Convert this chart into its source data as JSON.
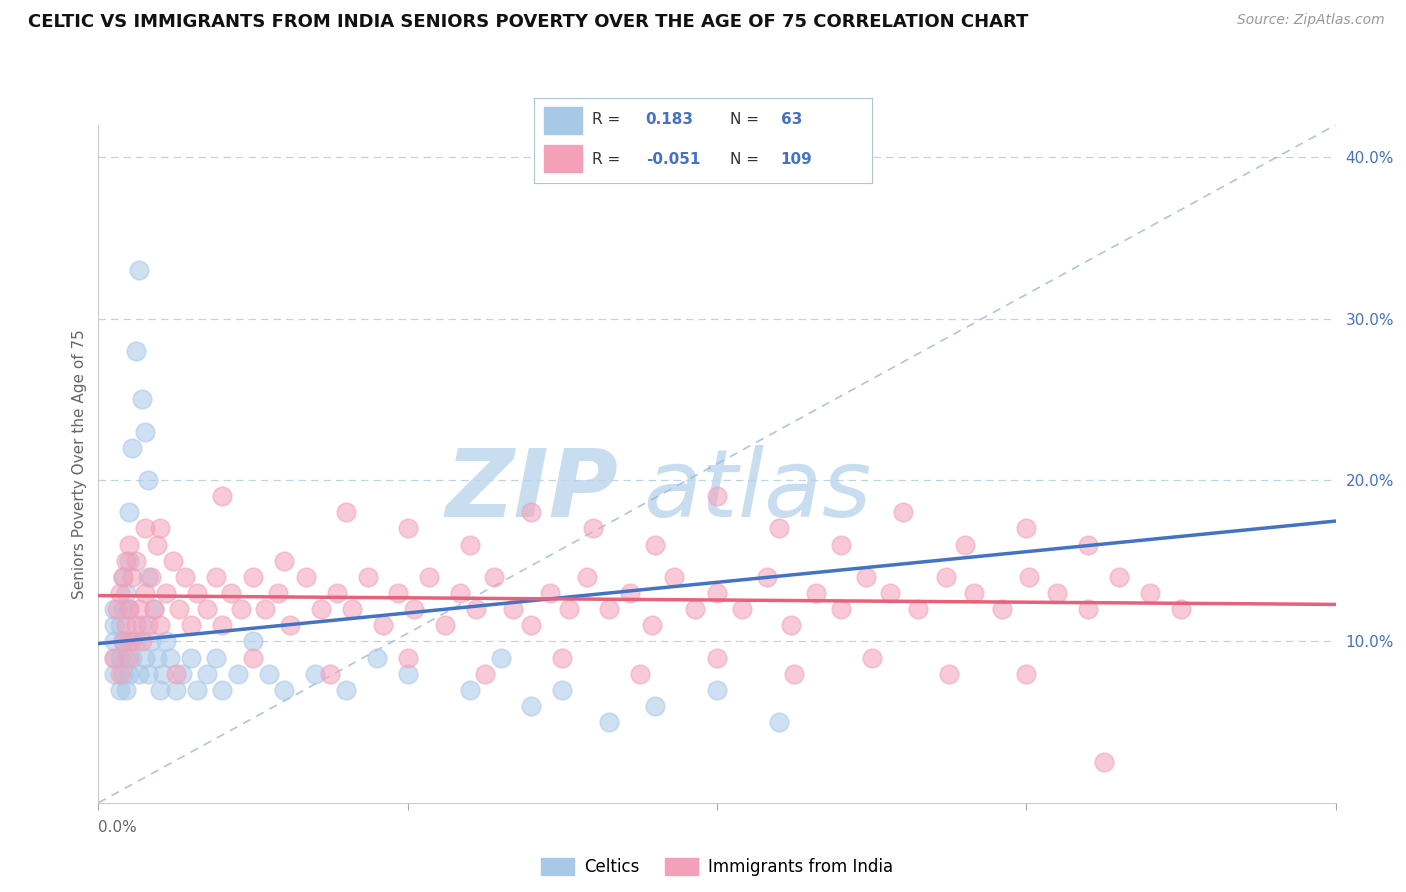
{
  "title": "CELTIC VS IMMIGRANTS FROM INDIA SENIORS POVERTY OVER THE AGE OF 75 CORRELATION CHART",
  "source": "Source: ZipAtlas.com",
  "ylabel": "Seniors Poverty Over the Age of 75",
  "legend_label1": "Celtics",
  "legend_label2": "Immigrants from India",
  "R1": 0.183,
  "N1": 63,
  "R2": -0.051,
  "N2": 109,
  "xmin": 0.0,
  "xmax": 0.4,
  "ymin": 0.0,
  "ymax": 0.42,
  "yticks": [
    0.1,
    0.2,
    0.3,
    0.4
  ],
  "ytick_labels": [
    "10.0%",
    "20.0%",
    "30.0%",
    "40.0%"
  ],
  "color_blue": "#a8c8e8",
  "color_pink": "#f4a0b8",
  "color_blue_line": "#4472c4",
  "color_pink_line": "#e8607a",
  "color_blue_text": "#4472c4",
  "color_gray_text": "#666666",
  "background": "#ffffff",
  "legend_box_color": "#e8f0f8",
  "celtics_x": [
    0.005,
    0.005,
    0.005,
    0.005,
    0.005,
    0.007,
    0.007,
    0.007,
    0.008,
    0.008,
    0.008,
    0.008,
    0.009,
    0.009,
    0.009,
    0.01,
    0.01,
    0.01,
    0.01,
    0.01,
    0.011,
    0.011,
    0.012,
    0.012,
    0.013,
    0.013,
    0.014,
    0.014,
    0.015,
    0.015,
    0.016,
    0.016,
    0.016,
    0.017,
    0.018,
    0.019,
    0.02,
    0.021,
    0.022,
    0.023,
    0.025,
    0.027,
    0.03,
    0.032,
    0.035,
    0.038,
    0.04,
    0.045,
    0.05,
    0.055,
    0.06,
    0.07,
    0.08,
    0.09,
    0.1,
    0.12,
    0.13,
    0.14,
    0.15,
    0.165,
    0.18,
    0.2,
    0.22
  ],
  "celtics_y": [
    0.08,
    0.09,
    0.1,
    0.11,
    0.12,
    0.07,
    0.09,
    0.11,
    0.08,
    0.1,
    0.12,
    0.14,
    0.07,
    0.09,
    0.13,
    0.08,
    0.1,
    0.12,
    0.15,
    0.18,
    0.09,
    0.22,
    0.1,
    0.28,
    0.08,
    0.33,
    0.11,
    0.25,
    0.09,
    0.23,
    0.08,
    0.14,
    0.2,
    0.1,
    0.12,
    0.09,
    0.07,
    0.08,
    0.1,
    0.09,
    0.07,
    0.08,
    0.09,
    0.07,
    0.08,
    0.09,
    0.07,
    0.08,
    0.1,
    0.08,
    0.07,
    0.08,
    0.07,
    0.09,
    0.08,
    0.07,
    0.09,
    0.06,
    0.07,
    0.05,
    0.06,
    0.07,
    0.05
  ],
  "india_x": [
    0.005,
    0.006,
    0.007,
    0.007,
    0.008,
    0.008,
    0.009,
    0.009,
    0.01,
    0.01,
    0.01,
    0.011,
    0.011,
    0.012,
    0.012,
    0.013,
    0.014,
    0.015,
    0.015,
    0.016,
    0.017,
    0.018,
    0.019,
    0.02,
    0.022,
    0.024,
    0.026,
    0.028,
    0.03,
    0.032,
    0.035,
    0.038,
    0.04,
    0.043,
    0.046,
    0.05,
    0.054,
    0.058,
    0.062,
    0.067,
    0.072,
    0.077,
    0.082,
    0.087,
    0.092,
    0.097,
    0.102,
    0.107,
    0.112,
    0.117,
    0.122,
    0.128,
    0.134,
    0.14,
    0.146,
    0.152,
    0.158,
    0.165,
    0.172,
    0.179,
    0.186,
    0.193,
    0.2,
    0.208,
    0.216,
    0.224,
    0.232,
    0.24,
    0.248,
    0.256,
    0.265,
    0.274,
    0.283,
    0.292,
    0.301,
    0.31,
    0.32,
    0.33,
    0.34,
    0.35,
    0.02,
    0.04,
    0.06,
    0.08,
    0.1,
    0.12,
    0.14,
    0.16,
    0.18,
    0.2,
    0.22,
    0.24,
    0.26,
    0.28,
    0.3,
    0.32,
    0.025,
    0.05,
    0.075,
    0.1,
    0.125,
    0.15,
    0.175,
    0.2,
    0.225,
    0.25,
    0.275,
    0.3,
    0.325
  ],
  "india_y": [
    0.09,
    0.12,
    0.08,
    0.13,
    0.1,
    0.14,
    0.11,
    0.15,
    0.09,
    0.12,
    0.16,
    0.1,
    0.14,
    0.11,
    0.15,
    0.12,
    0.1,
    0.13,
    0.17,
    0.11,
    0.14,
    0.12,
    0.16,
    0.11,
    0.13,
    0.15,
    0.12,
    0.14,
    0.11,
    0.13,
    0.12,
    0.14,
    0.11,
    0.13,
    0.12,
    0.14,
    0.12,
    0.13,
    0.11,
    0.14,
    0.12,
    0.13,
    0.12,
    0.14,
    0.11,
    0.13,
    0.12,
    0.14,
    0.11,
    0.13,
    0.12,
    0.14,
    0.12,
    0.11,
    0.13,
    0.12,
    0.14,
    0.12,
    0.13,
    0.11,
    0.14,
    0.12,
    0.13,
    0.12,
    0.14,
    0.11,
    0.13,
    0.12,
    0.14,
    0.13,
    0.12,
    0.14,
    0.13,
    0.12,
    0.14,
    0.13,
    0.12,
    0.14,
    0.13,
    0.12,
    0.17,
    0.19,
    0.15,
    0.18,
    0.17,
    0.16,
    0.18,
    0.17,
    0.16,
    0.19,
    0.17,
    0.16,
    0.18,
    0.16,
    0.17,
    0.16,
    0.08,
    0.09,
    0.08,
    0.09,
    0.08,
    0.09,
    0.08,
    0.09,
    0.08,
    0.09,
    0.08,
    0.08,
    0.025
  ]
}
